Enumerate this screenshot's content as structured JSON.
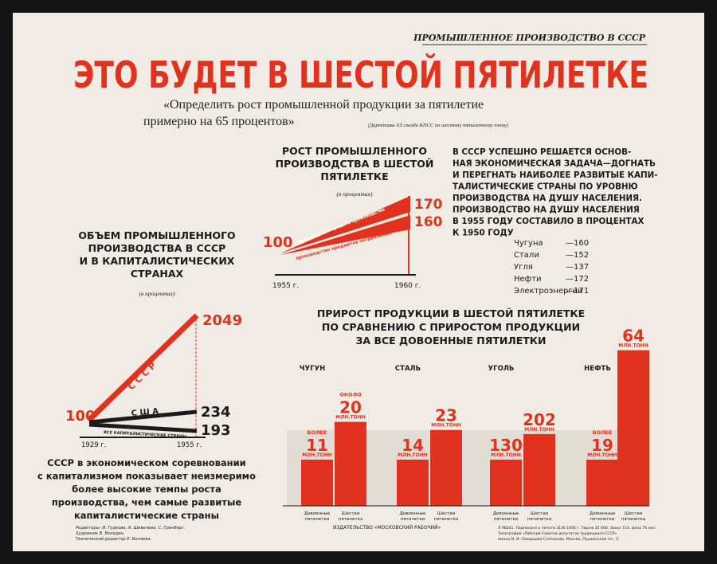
{
  "header": {
    "tag": "ПРОМЫШЛЕННОЕ ПРОИЗВОДСТВО В СССР",
    "title": "ЭТО БУДЕТ В ШЕСТОЙ ПЯТИЛЕТКЕ",
    "quote": [
      "«Определить рост промышленной продукции за пятилетие",
      "примерно на 65 процентов»"
    ],
    "source": "(Директивы XX съезда КПСС по шестому пятилетнему плану)"
  },
  "growth": {
    "title": [
      "РОСТ ПРОМЫШЛЕННОГО",
      "ПРОИЗВОДСТВА В ШЕСТОЙ",
      "ПЯТИЛЕТКЕ"
    ],
    "unit": "(в процентах)",
    "start": 100,
    "series": [
      {
        "name": "производство средств производства",
        "value": 170
      },
      {
        "name": "производство предметов потребления",
        "value": 160
      }
    ],
    "x": [
      "1955 г.",
      "1960 г."
    ]
  },
  "per_capita": {
    "lines": [
      "В СССР УСПЕШНО РЕШАЕТСЯ ОСНОВ-",
      "НАЯ ЭКОНОМИЧЕСКАЯ ЗАДАЧА—ДОГНАТЬ",
      "И ПЕРЕГНАТЬ НАИБОЛЕЕ РАЗВИТЫЕ КАПИ-",
      "ТАЛИСТИЧЕСКИЕ СТРАНЫ ПО УРОВНЮ",
      "ПРОИЗВОДСТВА НА ДУШУ НАСЕЛЕНИЯ.",
      "ПРОИЗВОДСТВО НА ДУШУ НАСЕЛЕНИЯ",
      "В 1955 ГОДУ СОСТАВИЛО В ПРОЦЕНТАХ",
      "К 1950 ГОДУ"
    ],
    "items": [
      {
        "name": "Чугуна",
        "value": "—160"
      },
      {
        "name": "Стали",
        "value": "—152"
      },
      {
        "name": "Угля",
        "value": "—137"
      },
      {
        "name": "Нефти",
        "value": "—172"
      },
      {
        "name": "Электроэнергии",
        "value": "—171"
      }
    ]
  },
  "volume": {
    "title": [
      "ОБЪЕМ ПРОМЫШЛЕННОГО",
      "ПРОИЗВОДСТВА В СССР",
      "И В КАПИТАЛИСТИЧЕСКИХ",
      "СТРАНАХ"
    ],
    "unit": "(в процентах)",
    "start": 100,
    "series": [
      {
        "name": "С С С Р",
        "value": 2049
      },
      {
        "name": "С Ш А",
        "value": 234
      },
      {
        "name": "ВСЕ КАПИТАЛИСТИЧЕСКИЕ СТРАНЫ",
        "value": 193
      }
    ],
    "x": [
      "1929 г.",
      "1955 г."
    ],
    "caption": [
      "СССР в экономическом соревновании",
      "с капитализмом показывает неизмеримо",
      "более высокие темпы роста",
      "производства, чем самые развитые",
      "капиталистические страны"
    ]
  },
  "increment": {
    "title": [
      "ПРИРОСТ ПРОДУКЦИИ В ШЕСТОЙ ПЯТИЛЕТКЕ",
      "ПО СРАВНЕНИЮ С ПРИРОСТОМ ПРОДУКЦИИ",
      "ЗА ВСЕ ДОВОЕННЫЕ ПЯТИЛЕТКИ"
    ],
    "unit": "МЛН.ТОНН",
    "bar_labels": [
      [
        "Довоенные",
        "пятилетки"
      ],
      [
        "Шестая",
        "пятилетка"
      ]
    ],
    "groups": [
      {
        "name": "ЧУГУН",
        "bars": [
          {
            "qualifier": "БОЛЕЕ",
            "value": 11
          },
          {
            "qualifier": "ОКОЛО",
            "value": 20
          }
        ]
      },
      {
        "name": "СТАЛЬ",
        "bars": [
          {
            "value": 14
          },
          {
            "value": 23
          }
        ]
      },
      {
        "name": "УГОЛЬ",
        "bars": [
          {
            "value": 130
          },
          {
            "value": 202
          }
        ]
      },
      {
        "name": "НЕФТЬ",
        "bars": [
          {
            "qualifier": "БОЛЕЕ",
            "value": 19
          },
          {
            "value": 64
          }
        ]
      }
    ]
  },
  "footer": {
    "credits": [
      "Редакторы: И. Гудкова, А. Шевелева, С. Гринберг.",
      "Художник В. Володин.",
      "Технический редактор Е. Беляева."
    ],
    "publisher": "ИЗДАТЕЛЬСТВО «МОСКОВСКИЙ РАБОЧИЙ»",
    "print": [
      "Л 98241. Подписано к печати 31/III 1956 г. Тираж 25 000. Заказ 714. Цена 75 коп.",
      "Типография «Рабочий Советов депутатов трудящихся СССР»",
      "имени И. И. Скворцова-Степанова. Москва, Пушкинская пл., 5."
    ]
  }
}
